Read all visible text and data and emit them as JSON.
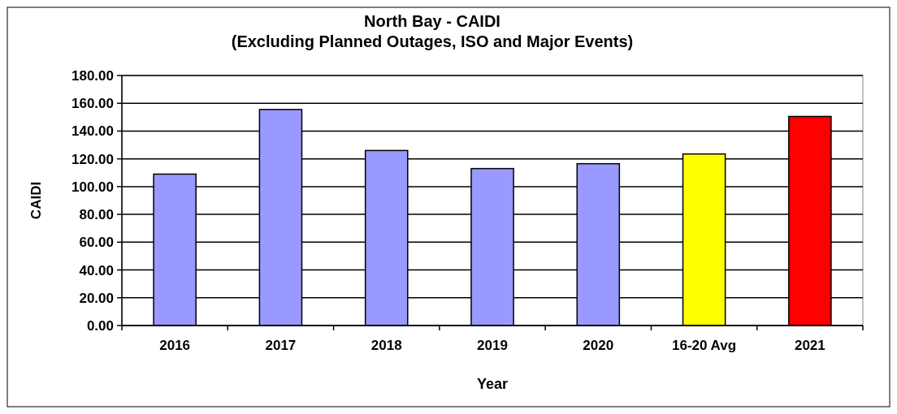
{
  "chart_data": {
    "type": "bar",
    "title": "North Bay - CAIDI",
    "subtitle": "(Excluding Planned Outages, ISO and Major Events)",
    "xlabel": "Year",
    "ylabel": "CAIDI",
    "categories": [
      "2016",
      "2017",
      "2018",
      "2019",
      "2020",
      "16-20 Avg",
      "2021"
    ],
    "values": [
      109,
      155.5,
      126,
      113,
      116.5,
      123.5,
      150.5
    ],
    "colors": [
      "#9999ff",
      "#9999ff",
      "#9999ff",
      "#9999ff",
      "#9999ff",
      "#ffff00",
      "#ff0000"
    ],
    "ylim": [
      0,
      180
    ],
    "yticks": [
      {
        "value": 0,
        "label": "0.00"
      },
      {
        "value": 20,
        "label": "20.00"
      },
      {
        "value": 40,
        "label": "40.00"
      },
      {
        "value": 60,
        "label": "60.00"
      },
      {
        "value": 80,
        "label": "80.00"
      },
      {
        "value": 100,
        "label": "100.00"
      },
      {
        "value": 120,
        "label": "120.00"
      },
      {
        "value": 140,
        "label": "140.00"
      },
      {
        "value": 160,
        "label": "160.00"
      },
      {
        "value": 180,
        "label": "180.00"
      }
    ],
    "grid": "y"
  }
}
